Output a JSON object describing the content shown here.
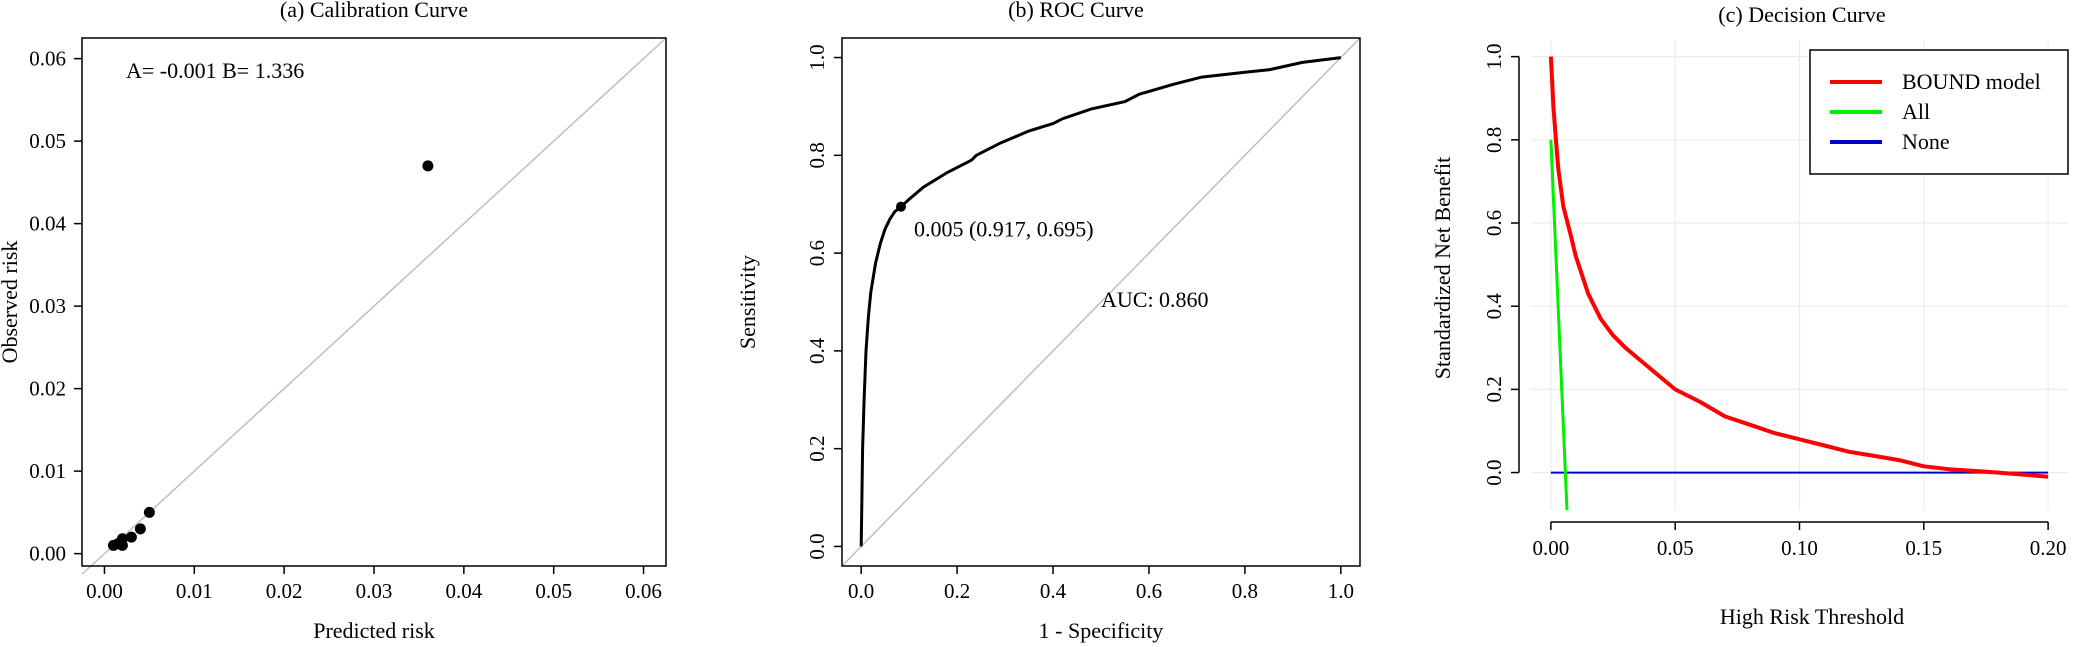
{
  "chart_data": [
    {
      "type": "scatter",
      "title": "(a) Calibration Curve",
      "xlabel": "Predicted risk",
      "ylabel": "Observed risk",
      "xlim": [
        -0.0025,
        0.0625
      ],
      "ylim": [
        -0.0015,
        0.0625
      ],
      "xticks": [
        0,
        0.01,
        0.02,
        0.03,
        0.04,
        0.05,
        0.06
      ],
      "xtick_labels": [
        "0.00",
        "0.01",
        "0.02",
        "0.03",
        "0.04",
        "0.05",
        "0.06"
      ],
      "yticks": [
        0,
        0.01,
        0.02,
        0.03,
        0.04,
        0.05,
        0.06
      ],
      "ytick_labels": [
        "0.00",
        "0.01",
        "0.02",
        "0.03",
        "0.04",
        "0.05",
        "0.06"
      ],
      "annotation": "A= -0.001 B= 1.336",
      "reference_line": {
        "from": [
          -0.0025,
          -0.0025
        ],
        "to": [
          0.0625,
          0.0625
        ],
        "color": "#bebebe"
      },
      "points": [
        {
          "x": 0.001,
          "y": 0.001
        },
        {
          "x": 0.0015,
          "y": 0.0012
        },
        {
          "x": 0.002,
          "y": 0.001
        },
        {
          "x": 0.002,
          "y": 0.0018
        },
        {
          "x": 0.003,
          "y": 0.002
        },
        {
          "x": 0.004,
          "y": 0.003
        },
        {
          "x": 0.005,
          "y": 0.005
        },
        {
          "x": 0.036,
          "y": 0.047
        }
      ],
      "grid": false
    },
    {
      "type": "line",
      "title": "(b) ROC Curve",
      "xlabel": "1 - Specificity",
      "ylabel": "Sensitivity",
      "xlim": [
        -0.04,
        1.04
      ],
      "ylim": [
        -0.04,
        1.04
      ],
      "xticks": [
        0,
        0.2,
        0.4,
        0.6,
        0.8,
        1
      ],
      "xtick_labels": [
        "0.0",
        "0.2",
        "0.4",
        "0.6",
        "0.8",
        "1.0"
      ],
      "yticks": [
        0,
        0.2,
        0.4,
        0.6,
        0.8,
        1
      ],
      "ytick_labels": [
        "0.0",
        "0.2",
        "0.4",
        "0.6",
        "0.8",
        "1.0"
      ],
      "auc_label": "AUC: 0.860",
      "threshold_label": "0.005 (0.917, 0.695)",
      "threshold_point": {
        "x": 0.083,
        "y": 0.695
      },
      "reference_line": {
        "from": [
          -0.04,
          -0.04
        ],
        "to": [
          1.04,
          1.04
        ],
        "color": "#bebebe"
      },
      "series": [
        {
          "color": "#000000",
          "x": [
            0,
            0.003,
            0.006,
            0.01,
            0.015,
            0.02,
            0.03,
            0.04,
            0.05,
            0.06,
            0.07,
            0.083,
            0.1,
            0.13,
            0.18,
            0.23,
            0.24,
            0.29,
            0.35,
            0.4,
            0.42,
            0.48,
            0.55,
            0.58,
            0.65,
            0.71,
            0.8,
            0.85,
            0.92,
            1.0
          ],
          "y": [
            0,
            0.2,
            0.3,
            0.4,
            0.47,
            0.52,
            0.58,
            0.62,
            0.65,
            0.67,
            0.685,
            0.695,
            0.71,
            0.735,
            0.765,
            0.79,
            0.8,
            0.825,
            0.85,
            0.865,
            0.875,
            0.895,
            0.91,
            0.925,
            0.945,
            0.96,
            0.97,
            0.975,
            0.99,
            1.0
          ]
        }
      ],
      "grid": false
    },
    {
      "type": "line",
      "title": "(c) Decision Curve",
      "xlabel": "High Risk Threshold",
      "ylabel": "Standardized Net Benefit",
      "xlim": [
        -0.008,
        0.208
      ],
      "ylim": [
        -0.09,
        1.04
      ],
      "xticks": [
        0,
        0.05,
        0.1,
        0.15,
        0.2
      ],
      "xtick_labels": [
        "0.00",
        "0.05",
        "0.10",
        "0.15",
        "0.20"
      ],
      "yticks": [
        0,
        0.2,
        0.4,
        0.6,
        0.8,
        1
      ],
      "ytick_labels": [
        "0.0",
        "0.2",
        "0.4",
        "0.6",
        "0.8",
        "1.0"
      ],
      "legend": {
        "position": "top-right"
      },
      "series": [
        {
          "name": "BOUND model",
          "color": "#ff0000",
          "x": [
            0,
            0.001,
            0.002,
            0.003,
            0.005,
            0.008,
            0.01,
            0.015,
            0.02,
            0.025,
            0.03,
            0.04,
            0.05,
            0.06,
            0.07,
            0.08,
            0.09,
            0.1,
            0.11,
            0.12,
            0.13,
            0.14,
            0.15,
            0.16,
            0.17,
            0.18,
            0.19,
            0.2
          ],
          "y": [
            1.0,
            0.88,
            0.8,
            0.73,
            0.64,
            0.57,
            0.52,
            0.43,
            0.37,
            0.33,
            0.3,
            0.25,
            0.2,
            0.17,
            0.135,
            0.115,
            0.095,
            0.08,
            0.065,
            0.05,
            0.04,
            0.03,
            0.015,
            0.008,
            0.004,
            0.0,
            -0.005,
            -0.01
          ]
        },
        {
          "name": "All",
          "color": "#00ee00",
          "x": [
            0,
            0.0065
          ],
          "y": [
            0.8,
            -0.09
          ]
        },
        {
          "name": "None",
          "color": "#0000cd",
          "x": [
            0,
            0.2
          ],
          "y": [
            0,
            0
          ]
        }
      ],
      "grid": true
    }
  ]
}
